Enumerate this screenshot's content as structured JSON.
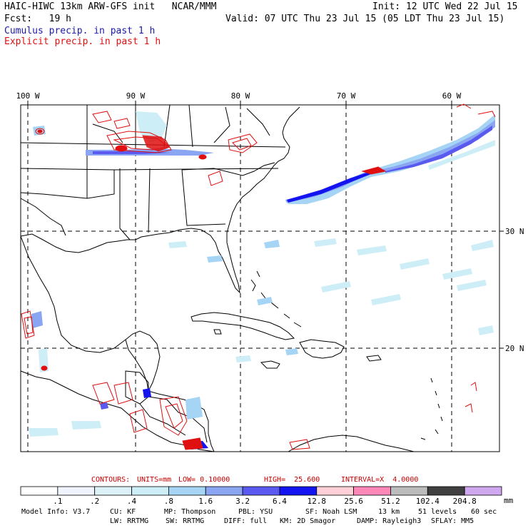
{
  "header": {
    "title": "HAIC-HIWC 13km ARW-GFS init   NCAR/MMM",
    "init": "Init: 12 UTC Wed 22 Jul 15",
    "fcst": "Fcst:   19 h",
    "valid": "Valid: 07 UTC Thu 23 Jul 15 (05 LDT Thu 23 Jul 15)",
    "cumulus": "Cumulus precip. in past 1 h",
    "explicit": "Explicit precip. in past 1 h",
    "cumulus_color": "#1a1aa8",
    "explicit_color": "#e01010"
  },
  "map": {
    "lon_labels": [
      "100 W",
      "90 W",
      "80 W",
      "70 W",
      "60 W"
    ],
    "lat_labels": [
      "30 N",
      "20 N"
    ]
  },
  "contours": {
    "label": "CONTOURS:",
    "units": "UNITS=mm",
    "low": "LOW= 0.10000",
    "high": "HIGH=  25.600",
    "interval": "INTERVAL=X  4.0000",
    "color": "#c00000"
  },
  "colorbar": {
    "labels": [
      ".1",
      ".2",
      ".4",
      ".8",
      "1.6",
      "3.2",
      "6.4",
      "12.8",
      "25.6",
      "51.2",
      "102.4",
      "204.8"
    ],
    "units": "mm",
    "colors": [
      "#ffffff",
      "#f0f4ff",
      "#dcf2f8",
      "#cdeef7",
      "#a6d4f4",
      "#8aa6f2",
      "#5a5af0",
      "#1414f0",
      "#ffd0d8",
      "#ff88b8",
      "#bcbcbc",
      "#404040",
      "#d0a8f0"
    ]
  },
  "footer": {
    "model": "Model Info: V3.7",
    "cu": "CU: KF",
    "mp": "MP: Thompson",
    "pbl": "PBL: YSU",
    "sf": "SF: Noah LSM",
    "res": "13 km",
    "levels": "51 levels",
    "dt": "60 sec",
    "lw": "LW: RRTMG",
    "sw": "SW: RRTMG",
    "diff": "DIFF: full",
    "km": "KM: 2D Smagor",
    "damp": "DAMP: Rayleigh3",
    "sflay": "SFLAY: MM5"
  }
}
